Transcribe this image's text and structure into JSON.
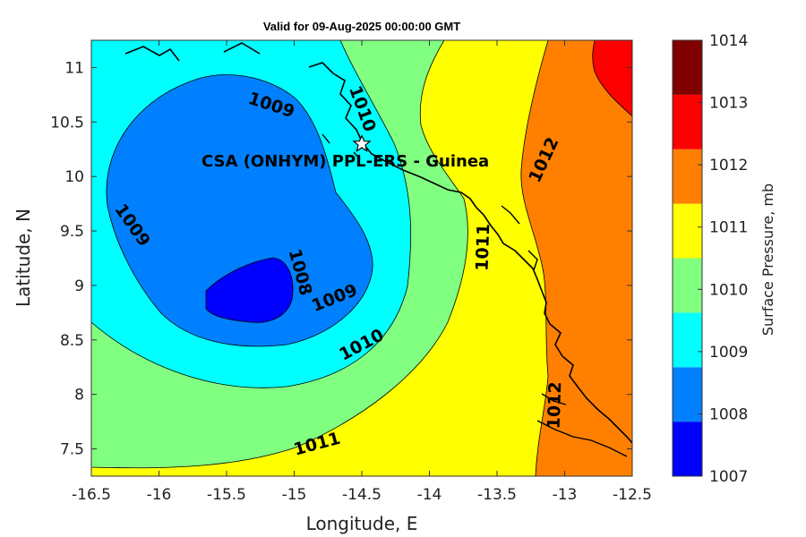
{
  "title": "Valid for 09-Aug-2025 00:00:00 GMT",
  "x_axis": {
    "label": "Longitude, E",
    "ticks": [
      -16.5,
      -16,
      -15.5,
      -15,
      -14.5,
      -14,
      -13.5,
      -13,
      -12.5
    ],
    "tick_labels": [
      "-16.5",
      "-16",
      "-15.5",
      "-15",
      "-14.5",
      "-14",
      "-13.5",
      "-13",
      "-12.5"
    ],
    "range": [
      -16.5,
      -12.5
    ]
  },
  "y_axis": {
    "label": "Latitude, N",
    "ticks": [
      7.5,
      8,
      8.5,
      9,
      9.5,
      10,
      10.5,
      11
    ],
    "tick_labels": [
      "7.5",
      "8",
      "8.5",
      "9",
      "9.5",
      "10",
      "10.5",
      "11"
    ],
    "range": [
      7.25,
      11.25
    ]
  },
  "colorbar": {
    "label": "Surface Pressure, mb",
    "levels": [
      "1007",
      "1008",
      "1009",
      "1010",
      "1011",
      "1012",
      "1013",
      "1014"
    ],
    "colors": [
      "#0000ff",
      "#0080ff",
      "#00ffff",
      "#80ff80",
      "#ffff00",
      "#ff8000",
      "#ff0000",
      "#800000"
    ]
  },
  "station": {
    "label": "CSA (ONHYM) PPL-ERS  - Guinea",
    "lon": -14.5,
    "lat": 10.3
  },
  "contour_labels": [
    {
      "text": "1009",
      "lon": -15.17,
      "lat": 10.65,
      "rot": 18
    },
    {
      "text": "1010",
      "lon": -14.5,
      "lat": 10.62,
      "rot": 70
    },
    {
      "text": "1012",
      "lon": -13.15,
      "lat": 10.15,
      "rot": -65
    },
    {
      "text": "1009",
      "lon": -16.2,
      "lat": 9.55,
      "rot": 55
    },
    {
      "text": "1008",
      "lon": -14.96,
      "lat": 9.12,
      "rot": 75
    },
    {
      "text": "1009",
      "lon": -14.7,
      "lat": 8.88,
      "rot": -22
    },
    {
      "text": "1011",
      "lon": -13.6,
      "lat": 9.35,
      "rot": -88
    },
    {
      "text": "1010",
      "lon": -14.5,
      "lat": 8.45,
      "rot": -28
    },
    {
      "text": "1012",
      "lon": -13.07,
      "lat": 7.9,
      "rot": -88
    },
    {
      "text": "1011",
      "lon": -14.83,
      "lat": 7.54,
      "rot": -15
    }
  ]
}
